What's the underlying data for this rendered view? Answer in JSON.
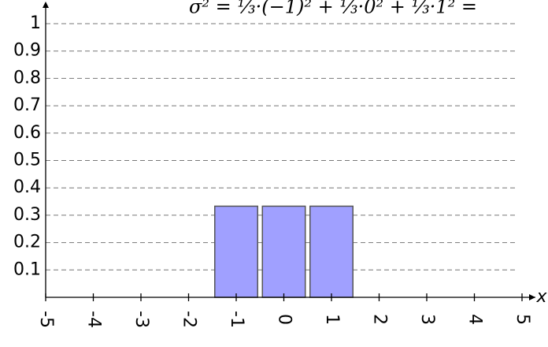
{
  "chart_data": {
    "type": "bar",
    "annotation": "σ² = ⅓·(−1)² + ⅓·0² + ⅓·1² =",
    "x_label": "x",
    "x": [
      -1,
      0,
      1
    ],
    "values": [
      0.333,
      0.333,
      0.333
    ],
    "color": "#a0a0ff",
    "xlim": [
      -5,
      5
    ],
    "xticks": [
      -5,
      -4,
      -3,
      -2,
      -1,
      0,
      1,
      2,
      3,
      4,
      5
    ],
    "ylim": [
      0,
      1
    ],
    "yticks": [
      0.1,
      0.2,
      0.3,
      0.4,
      0.5,
      0.6,
      0.7,
      0.8,
      0.9,
      1
    ],
    "grid": true
  }
}
